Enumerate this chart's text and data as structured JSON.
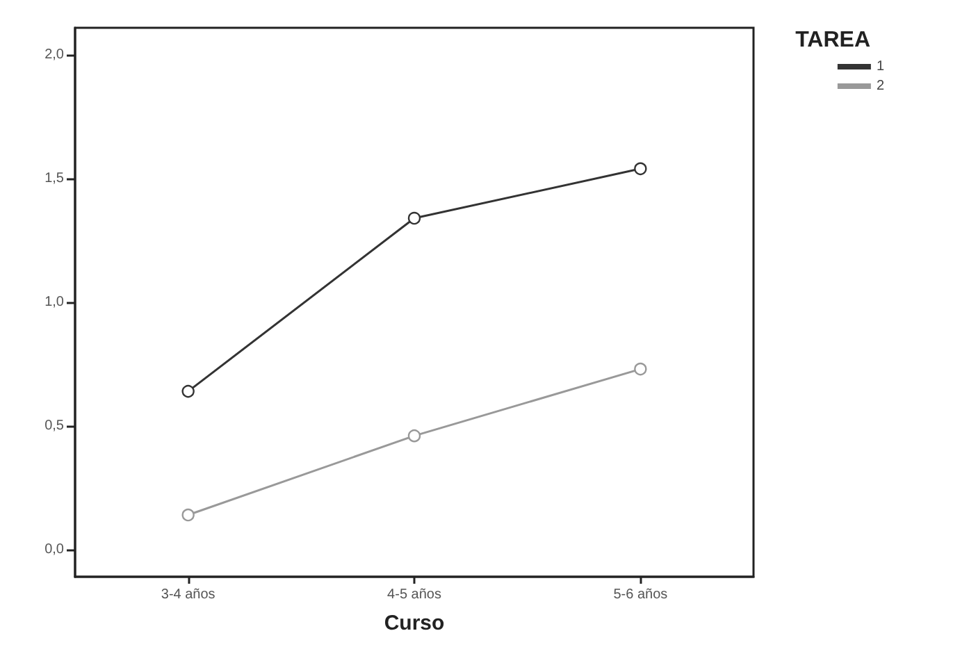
{
  "chart_data": {
    "type": "line",
    "xlabel": "Curso",
    "legend_title": "TAREA",
    "categories": [
      "3-4 años",
      "4-5 años",
      "5-6 años"
    ],
    "series": [
      {
        "name": "1",
        "color": "#333333",
        "values": [
          0.64,
          1.34,
          1.54
        ]
      },
      {
        "name": "2",
        "color": "#999999",
        "values": [
          0.14,
          0.46,
          0.73
        ]
      }
    ],
    "ylim": [
      -0.11,
      2.11
    ],
    "yticks": [
      {
        "value": 0,
        "label": "0,0"
      },
      {
        "value": 0.5,
        "label": "0,5"
      },
      {
        "value": 1,
        "label": "1,0"
      },
      {
        "value": 1.5,
        "label": "1,5"
      },
      {
        "value": 2,
        "label": "2,0"
      }
    ],
    "grid": false,
    "legend": "top right",
    "marker": "circle",
    "line_style": "solid"
  }
}
